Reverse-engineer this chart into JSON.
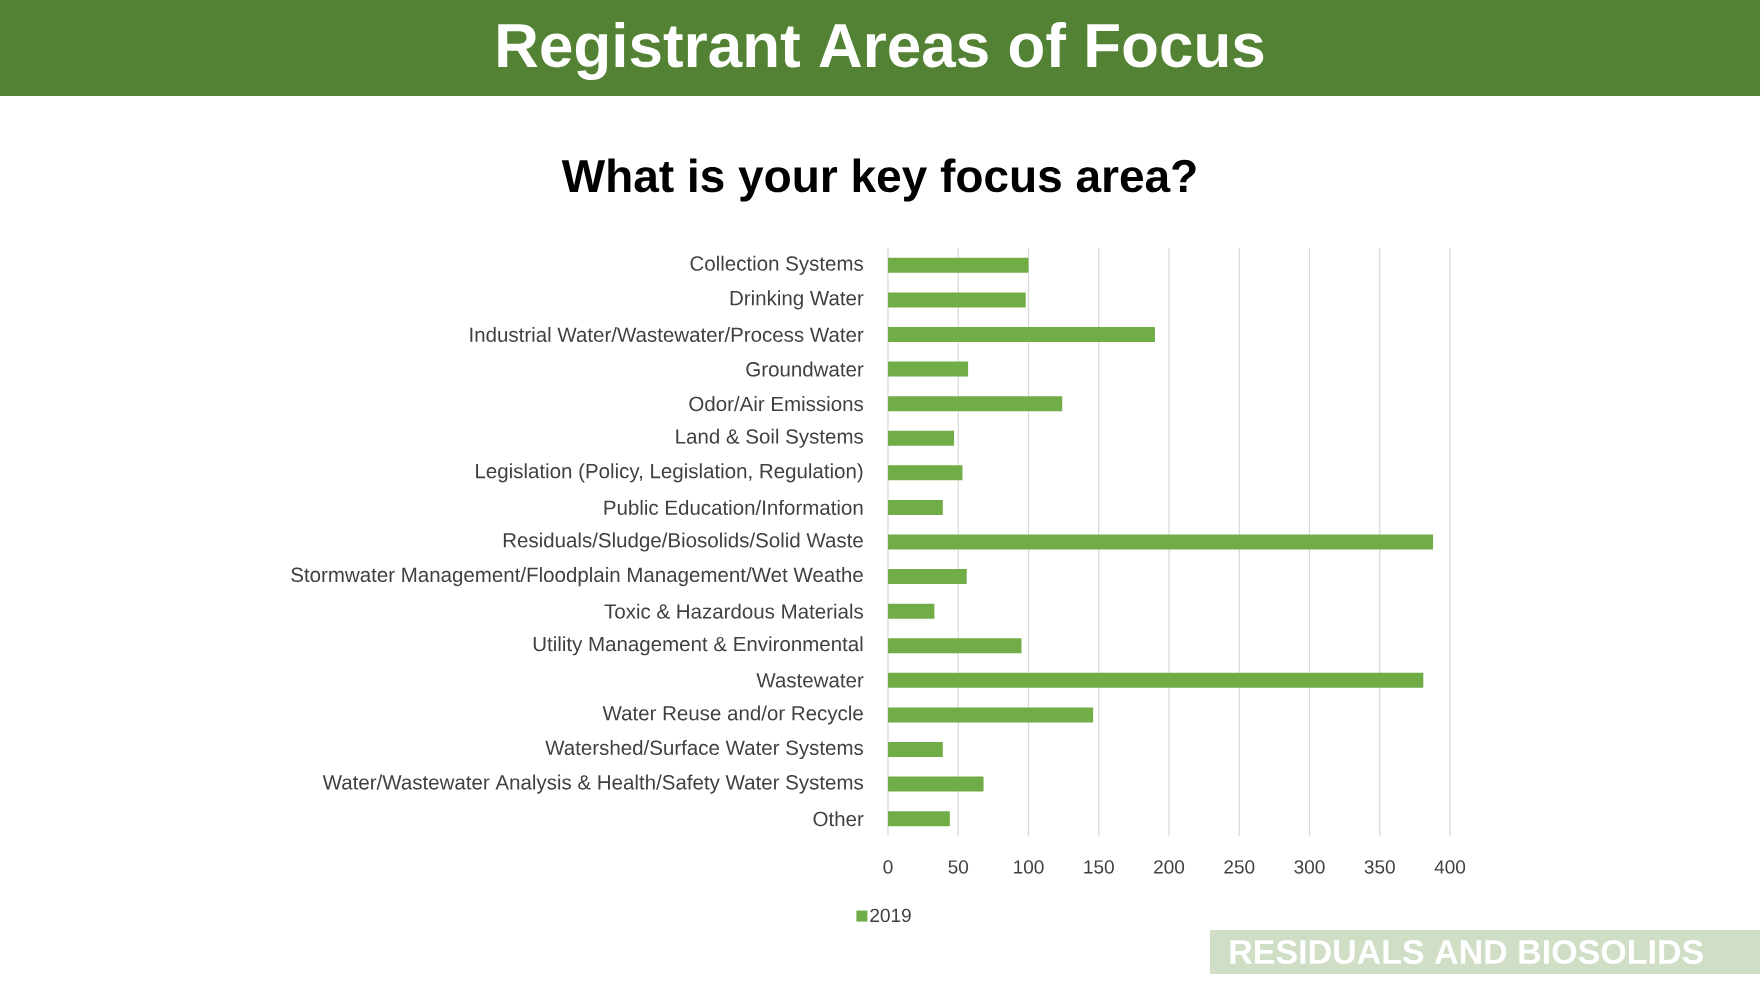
{
  "chart_data": {
    "type": "bar",
    "orientation": "horizontal",
    "title": "Registrant Areas of Focus",
    "subtitle": "What is your key focus area?",
    "categories": [
      "Collection Systems",
      "Drinking Water",
      "Industrial Water/Wastewater/Process Water",
      "Groundwater",
      "Odor/Air Emissions",
      "Land & Soil Systems",
      "Legislation (Policy, Legislation, Regulation)",
      "Public Education/Information",
      "Residuals/Sludge/Biosolids/Solid Waste",
      "Stormwater Management/Floodplain Management/Wet Weathe",
      "Toxic & Hazardous Materials",
      "Utility Management & Environmental",
      "Wastewater",
      "Water Reuse and/or Recycle",
      "Watershed/Surface Water Systems",
      "Water/Wastewater Analysis & Health/Safety Water Systems",
      "Other"
    ],
    "series": [
      {
        "name": "2019",
        "color": "#70ad47",
        "values": [
          100,
          98,
          190,
          57,
          124,
          47,
          53,
          39,
          388,
          56,
          33,
          95,
          381,
          146,
          39,
          68,
          44
        ]
      }
    ],
    "xlim": [
      0,
      400
    ],
    "xticks": [
      0,
      50,
      100,
      150,
      200,
      250,
      300,
      350,
      400
    ],
    "grid": "x",
    "legend": "bottom",
    "annotations": [
      "RESIDUALS AND BIOSOLIDS"
    ]
  }
}
